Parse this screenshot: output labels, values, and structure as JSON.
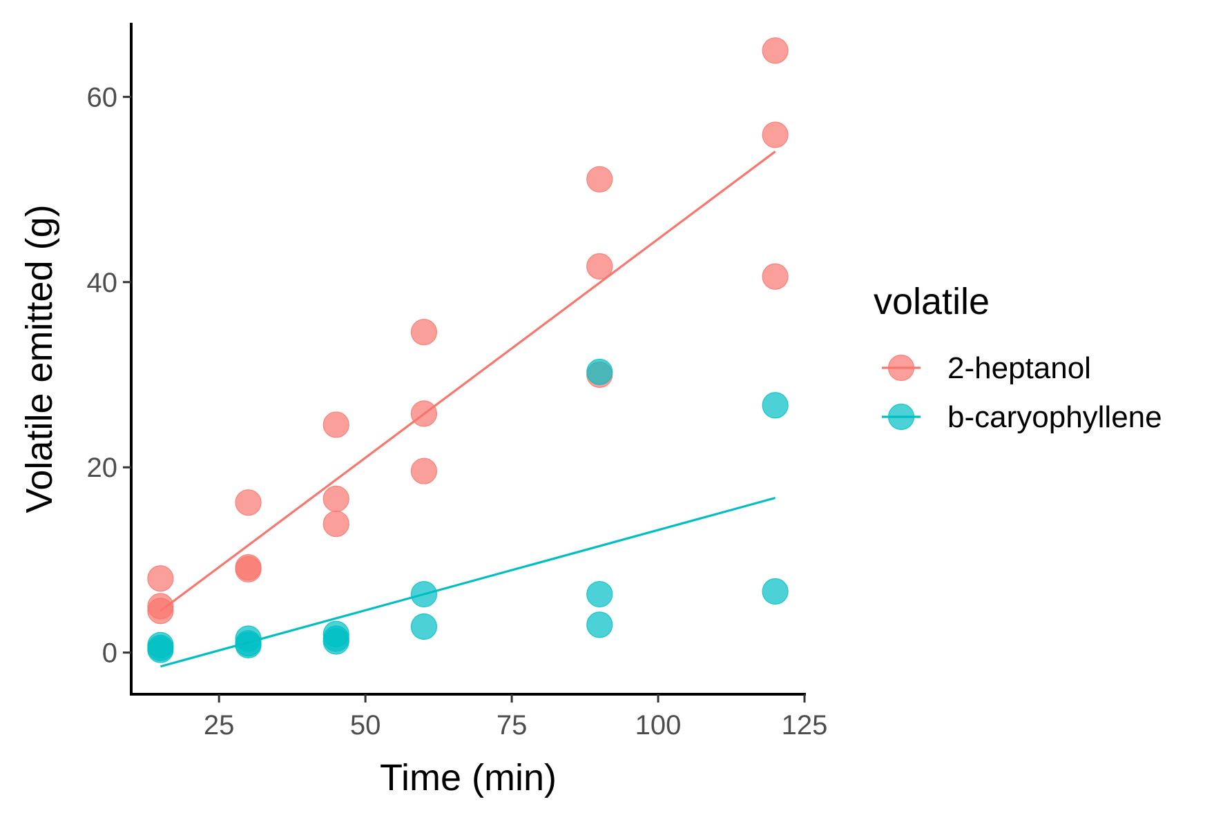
{
  "chart_data": {
    "type": "scatter",
    "title": "",
    "xlabel": "Time (min)",
    "ylabel": "Volatile emitted (g)",
    "xlim": [
      10,
      125
    ],
    "ylim": [
      -4.5,
      68
    ],
    "x_ticks": [
      25,
      50,
      75,
      100,
      125
    ],
    "y_ticks": [
      0,
      20,
      40,
      60
    ],
    "grid": false,
    "legend": {
      "title": "volatile",
      "position": "right"
    },
    "series": [
      {
        "name": "2-heptanol",
        "color": "#F8766D",
        "points": [
          {
            "x": 15,
            "y": 8.0
          },
          {
            "x": 15,
            "y": 5.0
          },
          {
            "x": 15,
            "y": 4.5
          },
          {
            "x": 30,
            "y": 16.2
          },
          {
            "x": 30,
            "y": 9.2
          },
          {
            "x": 30,
            "y": 9.0
          },
          {
            "x": 45,
            "y": 24.6
          },
          {
            "x": 45,
            "y": 16.6
          },
          {
            "x": 45,
            "y": 13.9
          },
          {
            "x": 60,
            "y": 34.6
          },
          {
            "x": 60,
            "y": 25.8
          },
          {
            "x": 60,
            "y": 19.6
          },
          {
            "x": 90,
            "y": 51.1
          },
          {
            "x": 90,
            "y": 41.7
          },
          {
            "x": 90,
            "y": 30.0
          },
          {
            "x": 120,
            "y": 65.0
          },
          {
            "x": 120,
            "y": 55.9
          },
          {
            "x": 120,
            "y": 40.6
          }
        ],
        "trend": {
          "x": [
            15,
            120
          ],
          "y": [
            4.5,
            54.1
          ]
        }
      },
      {
        "name": "b-caryophyllene",
        "color": "#00BFC4",
        "points": [
          {
            "x": 15,
            "y": 0.8
          },
          {
            "x": 15,
            "y": 0.5
          },
          {
            "x": 15,
            "y": 0.3
          },
          {
            "x": 30,
            "y": 1.5
          },
          {
            "x": 30,
            "y": 1.0
          },
          {
            "x": 30,
            "y": 0.8
          },
          {
            "x": 45,
            "y": 2.0
          },
          {
            "x": 45,
            "y": 1.5
          },
          {
            "x": 45,
            "y": 1.2
          },
          {
            "x": 60,
            "y": 6.3
          },
          {
            "x": 60,
            "y": 2.8
          },
          {
            "x": 90,
            "y": 30.3
          },
          {
            "x": 90,
            "y": 6.3
          },
          {
            "x": 90,
            "y": 3.0
          },
          {
            "x": 120,
            "y": 26.7
          },
          {
            "x": 120,
            "y": 6.6
          }
        ],
        "trend": {
          "x": [
            15,
            120
          ],
          "y": [
            -1.5,
            16.7
          ]
        }
      }
    ]
  }
}
